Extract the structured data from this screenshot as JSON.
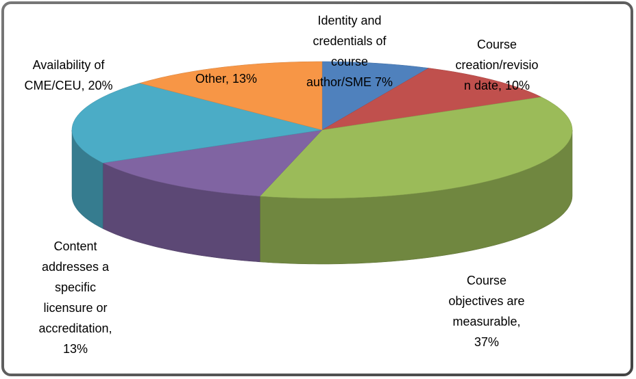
{
  "chart_data": {
    "type": "pie",
    "values": [
      7,
      10,
      37,
      13,
      20,
      13
    ],
    "value_labels": [
      "Identity and credentials of course author/SME 7%",
      "Course creation/revision date, 10%",
      "Course objectives are measurable, 37%",
      "Content addresses a specific licensure or accreditation, 13%",
      "Availability of CME/CEU, 20%",
      "Other, 13%"
    ],
    "colors": [
      "#4f81bd",
      "#c0504d",
      "#9bbb59",
      "#8064a2",
      "#4bacc6",
      "#f79646"
    ]
  }
}
